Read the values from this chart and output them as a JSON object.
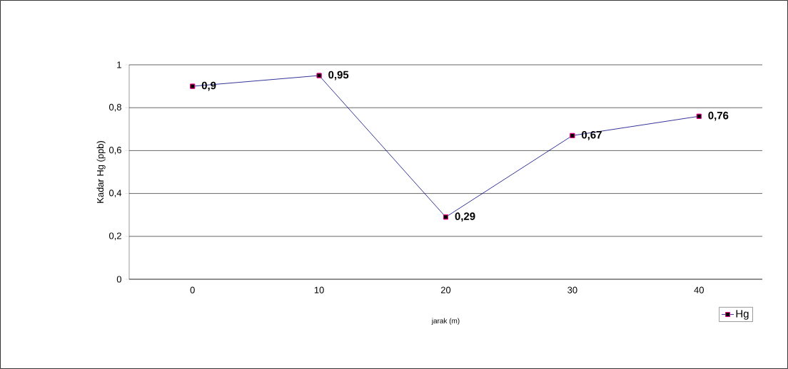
{
  "chart_data": {
    "type": "line",
    "xlabel": "jarak (m)",
    "ylabel": "Kadar Hg (ppb)",
    "categories": [
      "0",
      "10",
      "20",
      "30",
      "40"
    ],
    "series": [
      {
        "name": "Hg",
        "color": "#000080",
        "values": [
          0.9,
          0.95,
          0.29,
          0.67,
          0.76
        ],
        "value_labels": [
          "0,9",
          "0,95",
          "0,29",
          "0,67",
          "0,76"
        ]
      }
    ],
    "ylim": [
      0,
      1
    ],
    "yticks": [
      {
        "value": 0,
        "label": "0"
      },
      {
        "value": 0.2,
        "label": "0,2"
      },
      {
        "value": 0.4,
        "label": "0,4"
      },
      {
        "value": 0.6,
        "label": "0,6"
      },
      {
        "value": 0.8,
        "label": "0,8"
      },
      {
        "value": 1,
        "label": "1"
      }
    ],
    "grid": "y",
    "legend": "bottom right",
    "marker": "square",
    "line_style": "solid"
  }
}
